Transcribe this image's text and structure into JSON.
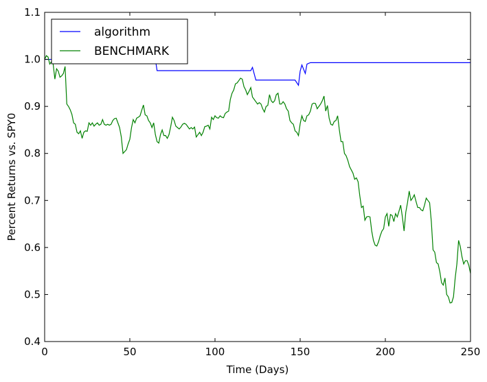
{
  "chart_data": {
    "type": "line",
    "title": "",
    "xlabel": "Time (Days)",
    "ylabel": "Percent Returns vs. SPY0",
    "xlim": [
      0,
      250
    ],
    "ylim": [
      0.4,
      1.1
    ],
    "x_ticks": [
      0,
      50,
      100,
      150,
      200,
      250
    ],
    "y_ticks": [
      0.4,
      0.5,
      0.6,
      0.7,
      0.8,
      0.9,
      1.0,
      1.1
    ],
    "x_tick_labels": [
      "0",
      "50",
      "100",
      "150",
      "200",
      "250"
    ],
    "y_tick_labels": [
      "0.4",
      "0.5",
      "0.6",
      "0.7",
      "0.8",
      "0.9",
      "1.0",
      "1.1"
    ],
    "grid": false,
    "legend_position": "top-left",
    "series": [
      {
        "name": "algorithm",
        "color": "#0000ff",
        "points": [
          [
            0,
            1.0
          ],
          [
            65,
            1.0
          ],
          [
            66,
            0.976
          ],
          [
            121,
            0.976
          ],
          [
            122,
            0.983
          ],
          [
            124,
            0.956
          ],
          [
            147,
            0.956
          ],
          [
            149,
            0.945
          ],
          [
            150,
            0.975
          ],
          [
            151,
            0.988
          ],
          [
            153,
            0.97
          ],
          [
            154,
            0.99
          ],
          [
            156,
            0.993
          ],
          [
            250,
            0.993
          ]
        ]
      },
      {
        "name": "BENCHMARK",
        "color": "#008000",
        "points": [
          [
            0,
            1.0
          ],
          [
            1,
            1.008
          ],
          [
            2,
            1.005
          ],
          [
            3,
            0.99
          ],
          [
            4,
            0.995
          ],
          [
            5,
            0.99
          ],
          [
            6,
            0.958
          ],
          [
            7,
            0.98
          ],
          [
            8,
            0.975
          ],
          [
            9,
            0.962
          ],
          [
            10,
            0.965
          ],
          [
            11,
            0.97
          ],
          [
            12,
            0.985
          ],
          [
            13,
            0.905
          ],
          [
            14,
            0.9
          ],
          [
            15,
            0.893
          ],
          [
            16,
            0.883
          ],
          [
            17,
            0.865
          ],
          [
            18,
            0.862
          ],
          [
            19,
            0.845
          ],
          [
            20,
            0.842
          ],
          [
            21,
            0.848
          ],
          [
            22,
            0.832
          ],
          [
            23,
            0.845
          ],
          [
            24,
            0.848
          ],
          [
            25,
            0.847
          ],
          [
            26,
            0.865
          ],
          [
            27,
            0.86
          ],
          [
            28,
            0.865
          ],
          [
            29,
            0.858
          ],
          [
            30,
            0.862
          ],
          [
            31,
            0.865
          ],
          [
            32,
            0.86
          ],
          [
            33,
            0.862
          ],
          [
            34,
            0.872
          ],
          [
            35,
            0.862
          ],
          [
            36,
            0.86
          ],
          [
            37,
            0.862
          ],
          [
            38,
            0.86
          ],
          [
            39,
            0.862
          ],
          [
            40,
            0.87
          ],
          [
            41,
            0.874
          ],
          [
            42,
            0.875
          ],
          [
            43,
            0.865
          ],
          [
            44,
            0.855
          ],
          [
            45,
            0.835
          ],
          [
            46,
            0.8
          ],
          [
            47,
            0.804
          ],
          [
            48,
            0.808
          ],
          [
            49,
            0.82
          ],
          [
            50,
            0.83
          ],
          [
            51,
            0.855
          ],
          [
            52,
            0.872
          ],
          [
            53,
            0.865
          ],
          [
            54,
            0.875
          ],
          [
            55,
            0.877
          ],
          [
            56,
            0.88
          ],
          [
            57,
            0.892
          ],
          [
            58,
            0.903
          ],
          [
            59,
            0.882
          ],
          [
            60,
            0.88
          ],
          [
            61,
            0.87
          ],
          [
            62,
            0.865
          ],
          [
            63,
            0.855
          ],
          [
            64,
            0.865
          ],
          [
            65,
            0.84
          ],
          [
            66,
            0.825
          ],
          [
            67,
            0.822
          ],
          [
            68,
            0.84
          ],
          [
            69,
            0.85
          ],
          [
            70,
            0.838
          ],
          [
            71,
            0.838
          ],
          [
            72,
            0.832
          ],
          [
            73,
            0.84
          ],
          [
            74,
            0.857
          ],
          [
            75,
            0.877
          ],
          [
            76,
            0.87
          ],
          [
            77,
            0.858
          ],
          [
            78,
            0.855
          ],
          [
            79,
            0.852
          ],
          [
            80,
            0.856
          ],
          [
            81,
            0.862
          ],
          [
            82,
            0.864
          ],
          [
            83,
            0.862
          ],
          [
            84,
            0.857
          ],
          [
            85,
            0.852
          ],
          [
            86,
            0.855
          ],
          [
            87,
            0.852
          ],
          [
            88,
            0.856
          ],
          [
            89,
            0.835
          ],
          [
            90,
            0.84
          ],
          [
            91,
            0.845
          ],
          [
            92,
            0.838
          ],
          [
            93,
            0.845
          ],
          [
            94,
            0.857
          ],
          [
            95,
            0.858
          ],
          [
            96,
            0.86
          ],
          [
            97,
            0.852
          ],
          [
            98,
            0.877
          ],
          [
            99,
            0.872
          ],
          [
            100,
            0.88
          ],
          [
            101,
            0.876
          ],
          [
            102,
            0.875
          ],
          [
            103,
            0.88
          ],
          [
            104,
            0.877
          ],
          [
            105,
            0.876
          ],
          [
            106,
            0.885
          ],
          [
            107,
            0.888
          ],
          [
            108,
            0.89
          ],
          [
            109,
            0.915
          ],
          [
            110,
            0.928
          ],
          [
            111,
            0.935
          ],
          [
            112,
            0.948
          ],
          [
            113,
            0.95
          ],
          [
            114,
            0.955
          ],
          [
            115,
            0.96
          ],
          [
            116,
            0.958
          ],
          [
            117,
            0.942
          ],
          [
            118,
            0.935
          ],
          [
            119,
            0.925
          ],
          [
            120,
            0.932
          ],
          [
            121,
            0.94
          ],
          [
            122,
            0.92
          ],
          [
            123,
            0.915
          ],
          [
            124,
            0.91
          ],
          [
            125,
            0.905
          ],
          [
            126,
            0.908
          ],
          [
            127,
            0.905
          ],
          [
            128,
            0.895
          ],
          [
            129,
            0.888
          ],
          [
            130,
            0.9
          ],
          [
            131,
            0.902
          ],
          [
            132,
            0.925
          ],
          [
            133,
            0.912
          ],
          [
            134,
            0.908
          ],
          [
            135,
            0.912
          ],
          [
            136,
            0.925
          ],
          [
            137,
            0.928
          ],
          [
            138,
            0.905
          ],
          [
            139,
            0.905
          ],
          [
            140,
            0.91
          ],
          [
            141,
            0.905
          ],
          [
            142,
            0.895
          ],
          [
            143,
            0.89
          ],
          [
            144,
            0.87
          ],
          [
            145,
            0.865
          ],
          [
            146,
            0.862
          ],
          [
            147,
            0.848
          ],
          [
            148,
            0.845
          ],
          [
            149,
            0.838
          ],
          [
            150,
            0.863
          ],
          [
            151,
            0.88
          ],
          [
            152,
            0.87
          ],
          [
            153,
            0.868
          ],
          [
            154,
            0.88
          ],
          [
            155,
            0.882
          ],
          [
            156,
            0.89
          ],
          [
            157,
            0.905
          ],
          [
            158,
            0.907
          ],
          [
            159,
            0.906
          ],
          [
            160,
            0.895
          ],
          [
            161,
            0.9
          ],
          [
            162,
            0.905
          ],
          [
            163,
            0.912
          ],
          [
            164,
            0.922
          ],
          [
            165,
            0.89
          ],
          [
            166,
            0.902
          ],
          [
            167,
            0.875
          ],
          [
            168,
            0.862
          ],
          [
            169,
            0.86
          ],
          [
            170,
            0.868
          ],
          [
            171,
            0.87
          ],
          [
            172,
            0.88
          ],
          [
            173,
            0.85
          ],
          [
            174,
            0.825
          ],
          [
            175,
            0.825
          ],
          [
            176,
            0.8
          ],
          [
            177,
            0.795
          ],
          [
            178,
            0.785
          ],
          [
            179,
            0.772
          ],
          [
            180,
            0.765
          ],
          [
            181,
            0.758
          ],
          [
            182,
            0.745
          ],
          [
            183,
            0.748
          ],
          [
            184,
            0.74
          ],
          [
            185,
            0.71
          ],
          [
            186,
            0.685
          ],
          [
            187,
            0.688
          ],
          [
            188,
            0.658
          ],
          [
            189,
            0.665
          ],
          [
            190,
            0.666
          ],
          [
            191,
            0.665
          ],
          [
            192,
            0.635
          ],
          [
            193,
            0.615
          ],
          [
            194,
            0.605
          ],
          [
            195,
            0.603
          ],
          [
            196,
            0.612
          ],
          [
            197,
            0.625
          ],
          [
            198,
            0.635
          ],
          [
            199,
            0.64
          ],
          [
            200,
            0.665
          ],
          [
            201,
            0.672
          ],
          [
            202,
            0.645
          ],
          [
            203,
            0.67
          ],
          [
            204,
            0.668
          ],
          [
            205,
            0.655
          ],
          [
            206,
            0.672
          ],
          [
            207,
            0.665
          ],
          [
            208,
            0.677
          ],
          [
            209,
            0.69
          ],
          [
            210,
            0.665
          ],
          [
            211,
            0.635
          ],
          [
            212,
            0.675
          ],
          [
            213,
            0.695
          ],
          [
            214,
            0.72
          ],
          [
            215,
            0.7
          ],
          [
            216,
            0.705
          ],
          [
            217,
            0.712
          ],
          [
            218,
            0.698
          ],
          [
            219,
            0.685
          ],
          [
            220,
            0.685
          ],
          [
            221,
            0.68
          ],
          [
            222,
            0.678
          ],
          [
            223,
            0.69
          ],
          [
            224,
            0.705
          ],
          [
            225,
            0.7
          ],
          [
            226,
            0.695
          ],
          [
            227,
            0.655
          ],
          [
            228,
            0.595
          ],
          [
            229,
            0.59
          ],
          [
            230,
            0.568
          ],
          [
            231,
            0.565
          ],
          [
            232,
            0.548
          ],
          [
            233,
            0.525
          ],
          [
            234,
            0.52
          ],
          [
            235,
            0.535
          ],
          [
            236,
            0.5
          ],
          [
            237,
            0.495
          ],
          [
            238,
            0.482
          ],
          [
            239,
            0.483
          ],
          [
            240,
            0.495
          ],
          [
            241,
            0.535
          ],
          [
            242,
            0.565
          ],
          [
            243,
            0.615
          ],
          [
            244,
            0.602
          ],
          [
            245,
            0.58
          ],
          [
            246,
            0.565
          ],
          [
            247,
            0.572
          ],
          [
            248,
            0.572
          ],
          [
            249,
            0.562
          ],
          [
            250,
            0.545
          ]
        ]
      }
    ]
  }
}
